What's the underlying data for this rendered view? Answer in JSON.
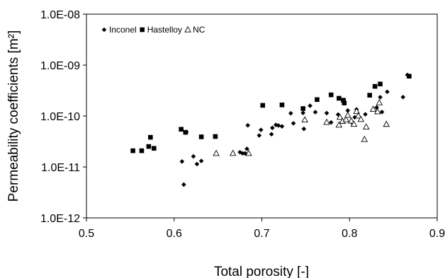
{
  "chart_data": {
    "type": "scatter",
    "xlabel": "Total porosity [-]",
    "ylabel": "Permeability coefficients [m²]",
    "xlim": [
      0.5,
      0.9
    ],
    "ylim": [
      1e-12,
      1e-08
    ],
    "y_scale": "log",
    "grid": false,
    "legend": "top-left",
    "x_ticks": [
      {
        "value": 0.5,
        "label": "0.5"
      },
      {
        "value": 0.6,
        "label": "0.6"
      },
      {
        "value": 0.7,
        "label": "0.7"
      },
      {
        "value": 0.8,
        "label": "0.8"
      },
      {
        "value": 0.9,
        "label": "0.9"
      }
    ],
    "y_ticks": [
      {
        "value": 1e-12,
        "label": "1.0E-12"
      },
      {
        "value": 1e-11,
        "label": "1.0E-11"
      },
      {
        "value": 1e-10,
        "label": "1.0E-10"
      },
      {
        "value": 1e-09,
        "label": "1.0E-09"
      },
      {
        "value": 1e-08,
        "label": "1.0E-08"
      }
    ],
    "series": [
      {
        "name": "Inconel",
        "marker": "diamond",
        "color": "#000000",
        "points": [
          [
            0.609,
            1.28e-11
          ],
          [
            0.611,
            4.5e-12
          ],
          [
            0.614,
            4.84e-11
          ],
          [
            0.622,
            1.61e-11
          ],
          [
            0.626,
            1.14e-11
          ],
          [
            0.631,
            1.31e-11
          ],
          [
            0.675,
            1.95e-11
          ],
          [
            0.678,
            1.85e-11
          ],
          [
            0.681,
            1.85e-11
          ],
          [
            0.683,
            2.27e-11
          ],
          [
            0.684,
            6.56e-11
          ],
          [
            0.697,
            4.15e-11
          ],
          [
            0.699,
            5.34e-11
          ],
          [
            0.711,
            4.39e-11
          ],
          [
            0.712,
            5.85e-11
          ],
          [
            0.716,
            6.69e-11
          ],
          [
            0.719,
            6.5e-11
          ],
          [
            0.723,
            6.26e-11
          ],
          [
            0.733,
            1.13e-10
          ],
          [
            0.736,
            7.19e-11
          ],
          [
            0.747,
            1.15e-10
          ],
          [
            0.748,
            5.59e-11
          ],
          [
            0.755,
            1.59e-10
          ],
          [
            0.761,
            1.19e-10
          ],
          [
            0.774,
            1.14e-10
          ],
          [
            0.779,
            7.49e-11
          ],
          [
            0.787,
            1.07e-10
          ],
          [
            0.798,
            1.28e-10
          ],
          [
            0.803,
            7.34e-11
          ],
          [
            0.806,
            9.44e-11
          ],
          [
            0.808,
            1.35e-10
          ],
          [
            0.818,
            1.08e-10
          ],
          [
            0.827,
            1.34e-10
          ],
          [
            0.831,
            1.47e-10
          ],
          [
            0.835,
            2.34e-10
          ],
          [
            0.837,
            1.2e-10
          ],
          [
            0.843,
            2.99e-10
          ],
          [
            0.861,
            2.35e-10
          ],
          [
            0.866,
            6.4e-10
          ]
        ]
      },
      {
        "name": "Hastelloy",
        "marker": "square",
        "color": "#000000",
        "points": [
          [
            0.553,
            2.08e-11
          ],
          [
            0.563,
            2.08e-11
          ],
          [
            0.571,
            2.52e-11
          ],
          [
            0.573,
            3.82e-11
          ],
          [
            0.577,
            2.32e-11
          ],
          [
            0.608,
            5.49e-11
          ],
          [
            0.613,
            4.78e-11
          ],
          [
            0.631,
            3.9e-11
          ],
          [
            0.647,
            3.96e-11
          ],
          [
            0.701,
            1.62e-10
          ],
          [
            0.723,
            1.65e-10
          ],
          [
            0.747,
            1.4e-10
          ],
          [
            0.763,
            2.1e-10
          ],
          [
            0.779,
            2.6e-10
          ],
          [
            0.788,
            2.23e-10
          ],
          [
            0.793,
            2.04e-10
          ],
          [
            0.794,
            1.8e-10
          ],
          [
            0.823,
            2.56e-10
          ],
          [
            0.829,
            3.82e-10
          ],
          [
            0.835,
            4.25e-10
          ],
          [
            0.868,
            6.05e-10
          ]
        ]
      },
      {
        "name": "NC",
        "marker": "triangle",
        "color": "#000000",
        "points": [
          [
            0.648,
            1.85e-11
          ],
          [
            0.667,
            1.86e-11
          ],
          [
            0.685,
            1.85e-11
          ],
          [
            0.749,
            8.43e-11
          ],
          [
            0.774,
            7.56e-11
          ],
          [
            0.788,
            6.68e-11
          ],
          [
            0.789,
            9.5e-11
          ],
          [
            0.792,
            7.92e-11
          ],
          [
            0.796,
            8.52e-11
          ],
          [
            0.798,
            1.04e-10
          ],
          [
            0.802,
            8.02e-11
          ],
          [
            0.805,
            6.92e-11
          ],
          [
            0.808,
            1.24e-10
          ],
          [
            0.81,
            1.01e-10
          ],
          [
            0.813,
            8.62e-11
          ],
          [
            0.817,
            3.48e-11
          ],
          [
            0.819,
            6.12e-11
          ],
          [
            0.827,
            1.36e-10
          ],
          [
            0.832,
            1.22e-10
          ],
          [
            0.834,
            1.83e-10
          ],
          [
            0.842,
            6.91e-11
          ]
        ]
      }
    ]
  }
}
